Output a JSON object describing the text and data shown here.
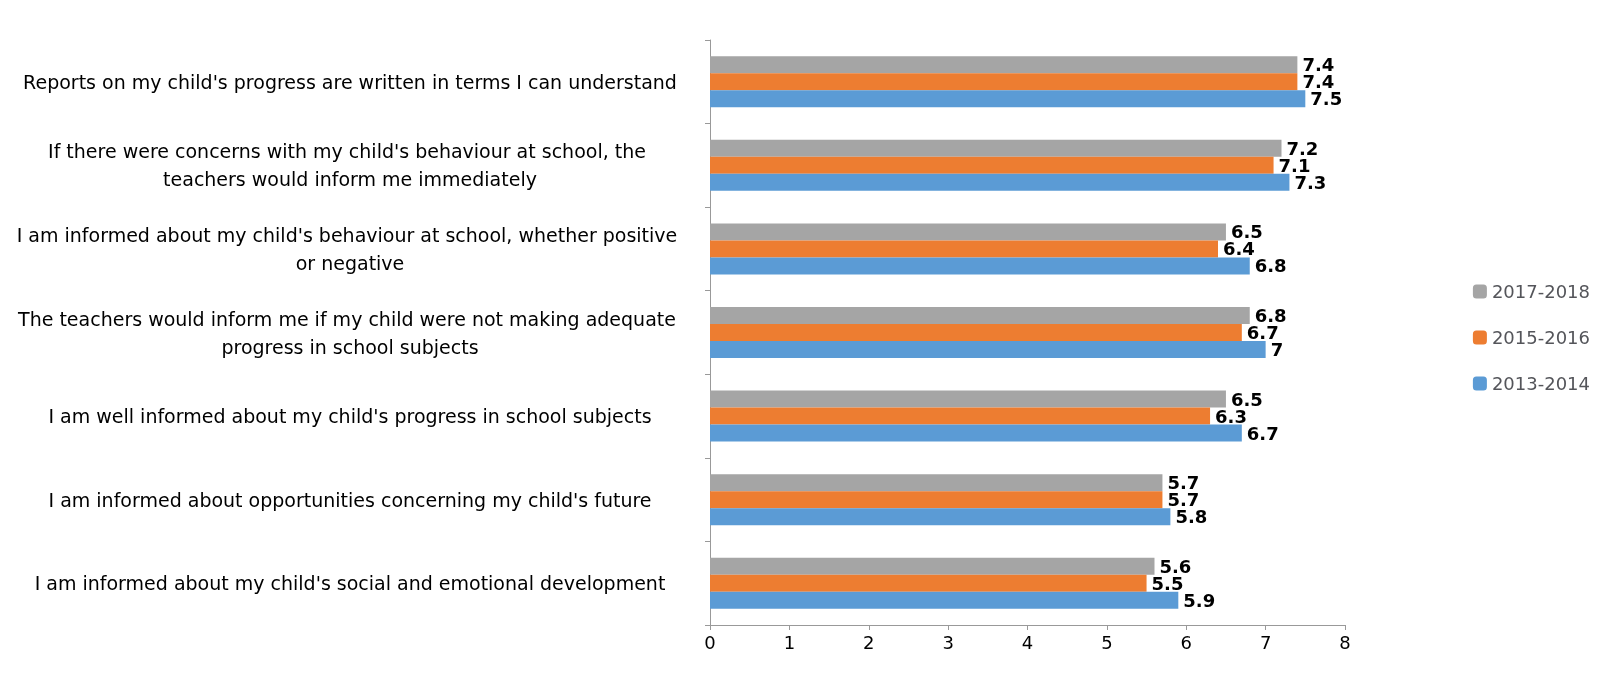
{
  "chart_data": {
    "type": "bar",
    "orientation": "horizontal",
    "categories": [
      "Reports on my child's progress are written in terms I can understand",
      "If there were concerns with my child's behaviour at school, the teachers would inform me immediately",
      "I am informed about my child's behaviour at school, whether positive or negative",
      "The teachers would inform me if my child were not making adequate progress in school subjects",
      "I am well informed about my child's progress in school subjects",
      "I am informed about opportunities concerning my child's future",
      "I am informed about my child's social and emotional development"
    ],
    "series": [
      {
        "name": "2017-2018",
        "color": "#a5a5a5",
        "values": [
          7.4,
          7.2,
          6.5,
          6.8,
          6.5,
          5.7,
          5.6
        ]
      },
      {
        "name": "2015-2016",
        "color": "#ed7d31",
        "values": [
          7.4,
          7.1,
          6.4,
          6.7,
          6.3,
          5.7,
          5.5
        ]
      },
      {
        "name": "2013-2014",
        "color": "#5b9bd5",
        "values": [
          7.5,
          7.3,
          6.8,
          7,
          6.7,
          5.8,
          5.9
        ]
      }
    ],
    "xlim": [
      0,
      8
    ],
    "xticks": [
      0,
      1,
      2,
      3,
      4,
      5,
      6,
      7,
      8
    ],
    "grid": false,
    "legend": "right",
    "data_labels": true
  }
}
